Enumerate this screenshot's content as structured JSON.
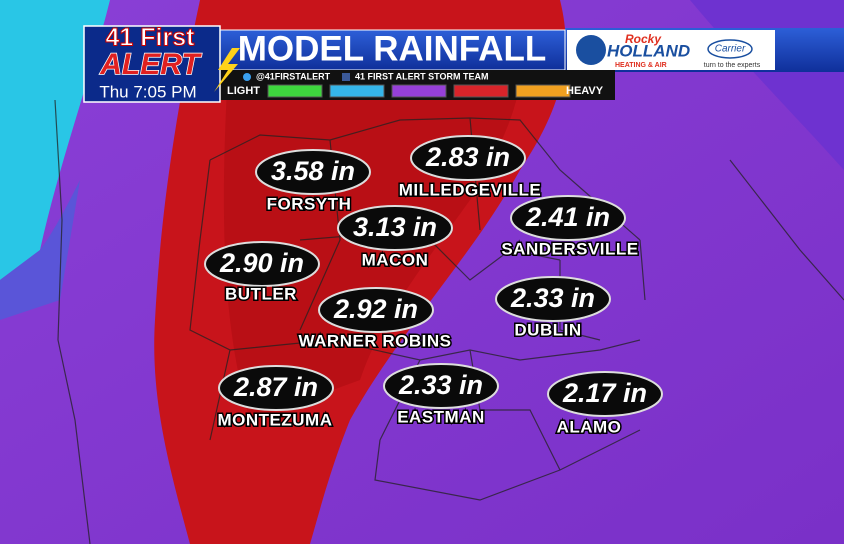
{
  "header": {
    "logo_line1": "41 First",
    "logo_line2": "ALERT",
    "time": "Thu 7:05 PM",
    "title": "MODEL RAINFALL",
    "twitter": "@41FIRSTALERT",
    "facebook": "41 FIRST ALERT STORM TEAM",
    "legend_low": "LIGHT",
    "legend_high": "HEAVY",
    "sponsor_script": "Rocky",
    "sponsor_name": "HOLLAND",
    "sponsor_tag": "HEATING & AIR",
    "partner": "Carrier",
    "partner_tag": "turn to the experts"
  },
  "locations": [
    {
      "amount": "3.58 in",
      "city": "FORSYTH"
    },
    {
      "amount": "2.83 in",
      "city": "MILLEDGEVILLE"
    },
    {
      "amount": "2.41 in",
      "city": "SANDERSVILLE"
    },
    {
      "amount": "3.13 in",
      "city": "MACON"
    },
    {
      "amount": "2.90 in",
      "city": "BUTLER"
    },
    {
      "amount": "2.92 in",
      "city": "WARNER ROBINS"
    },
    {
      "amount": "2.33 in",
      "city": "DUBLIN"
    },
    {
      "amount": "2.87 in",
      "city": "MONTEZUMA"
    },
    {
      "amount": "2.33 in",
      "city": "EASTMAN"
    },
    {
      "amount": "2.17 in",
      "city": "ALAMO"
    }
  ]
}
